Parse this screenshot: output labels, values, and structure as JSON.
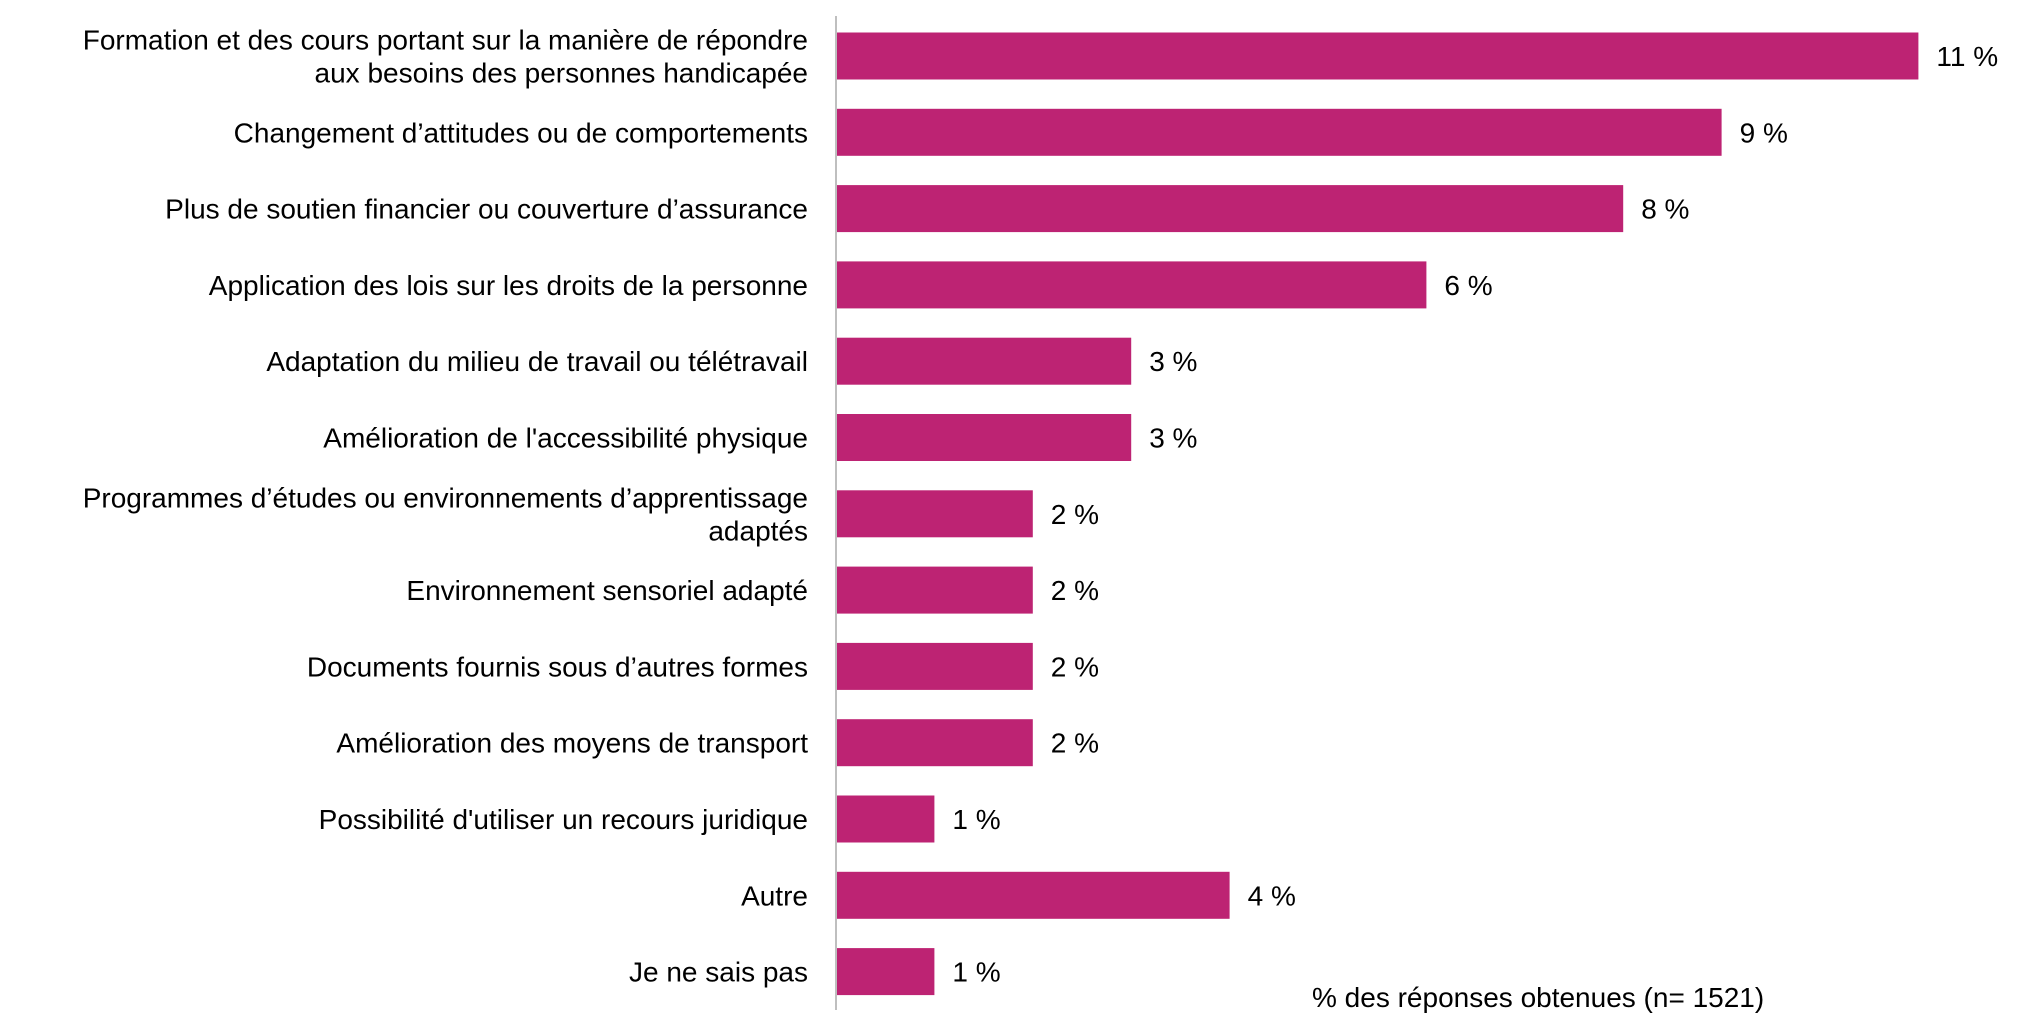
{
  "chart_data": {
    "type": "bar",
    "orientation": "horizontal",
    "categories": [
      [
        "Formation et des cours portant sur la manière de répondre",
        "aux besoins des personnes handicapée"
      ],
      [
        "Changement d’attitudes ou de comportements"
      ],
      [
        "Plus de soutien financier ou couverture d’assurance"
      ],
      [
        "Application des lois sur les droits de la personne"
      ],
      [
        "Adaptation du milieu de travail ou télétravail"
      ],
      [
        "Amélioration de l'accessibilité physique"
      ],
      [
        "Programmes d’études ou environnements d’apprentissage",
        "adaptés"
      ],
      [
        "Environnement sensoriel adapté"
      ],
      [
        "Documents fournis sous d’autres formes"
      ],
      [
        "Amélioration des moyens de transport"
      ],
      [
        "Possibilité d'utiliser un recours juridique"
      ],
      [
        "Autre"
      ],
      [
        "Je ne sais pas"
      ]
    ],
    "values": [
      11,
      9,
      8,
      6,
      3,
      3,
      2,
      2,
      2,
      2,
      1,
      4,
      1
    ],
    "value_labels": [
      "11 %",
      "9 %",
      "8 %",
      "6 %",
      "3 %",
      "3 %",
      "2 %",
      "2 %",
      "2 %",
      "2 %",
      "1 %",
      "4 %",
      "1 %"
    ],
    "bar_color": "#bd2373",
    "axis_color": "#bfbfbf",
    "grid": false,
    "legend": "none",
    "annotation": "% des réponses obtenues (n= 1521)"
  }
}
